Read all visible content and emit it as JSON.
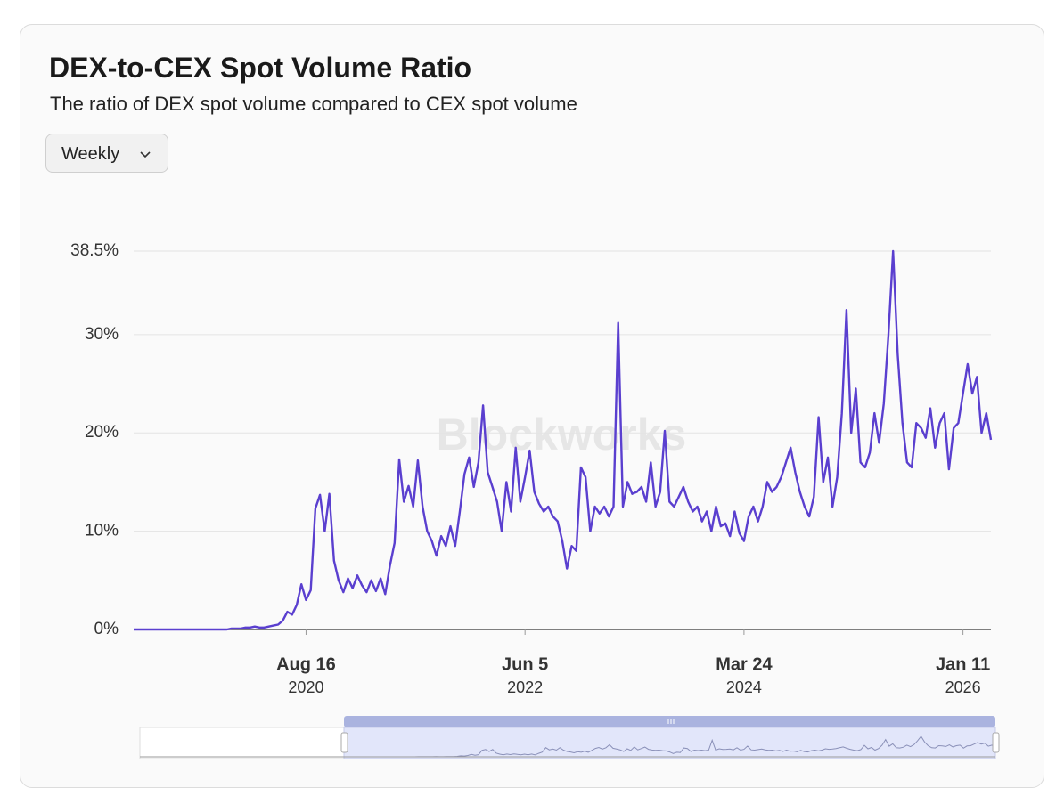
{
  "header": {
    "title": "DEX-to-CEX Spot Volume Ratio",
    "subtitle": "The ratio of DEX spot volume compared to CEX spot volume",
    "dropdown": "Weekly"
  },
  "chart_data": {
    "type": "line",
    "watermark": "Blockworks",
    "x": [
      "2019-03-17",
      "2019-03-31",
      "2019-04-14",
      "2019-04-28",
      "2019-05-12",
      "2019-05-26",
      "2019-06-09",
      "2019-06-23",
      "2019-07-07",
      "2019-07-21",
      "2019-08-04",
      "2019-08-18",
      "2019-09-01",
      "2019-09-15",
      "2019-09-29",
      "2019-10-13",
      "2019-10-27",
      "2019-11-10",
      "2019-11-24",
      "2019-12-08",
      "2019-12-22",
      "2020-01-05",
      "2020-01-19",
      "2020-02-02",
      "2020-02-16",
      "2020-03-01",
      "2020-03-15",
      "2020-03-29",
      "2020-04-12",
      "2020-04-26",
      "2020-05-10",
      "2020-05-24",
      "2020-06-07",
      "2020-06-21",
      "2020-07-05",
      "2020-07-19",
      "2020-08-02",
      "2020-08-16",
      "2020-08-30",
      "2020-09-13",
      "2020-09-27",
      "2020-10-11",
      "2020-10-25",
      "2020-11-08",
      "2020-11-22",
      "2020-12-06",
      "2020-12-20",
      "2021-01-03",
      "2021-01-17",
      "2021-01-31",
      "2021-02-14",
      "2021-02-28",
      "2021-03-14",
      "2021-03-28",
      "2021-04-11",
      "2021-04-25",
      "2021-05-09",
      "2021-05-23",
      "2021-06-06",
      "2021-06-20",
      "2021-07-04",
      "2021-07-18",
      "2021-08-01",
      "2021-08-15",
      "2021-08-29",
      "2021-09-12",
      "2021-09-26",
      "2021-10-10",
      "2021-10-24",
      "2021-11-07",
      "2021-11-21",
      "2021-12-05",
      "2021-12-19",
      "2022-01-02",
      "2022-01-16",
      "2022-01-30",
      "2022-02-13",
      "2022-02-27",
      "2022-03-13",
      "2022-03-27",
      "2022-04-10",
      "2022-04-24",
      "2022-05-08",
      "2022-05-22",
      "2022-06-05",
      "2022-06-19",
      "2022-07-03",
      "2022-07-17",
      "2022-07-31",
      "2022-08-14",
      "2022-08-28",
      "2022-09-11",
      "2022-09-25",
      "2022-10-09",
      "2022-10-23",
      "2022-11-06",
      "2022-11-20",
      "2022-12-04",
      "2022-12-18",
      "2023-01-01",
      "2023-01-15",
      "2023-01-29",
      "2023-02-12",
      "2023-02-26",
      "2023-03-12",
      "2023-03-26",
      "2023-04-09",
      "2023-04-23",
      "2023-05-07",
      "2023-05-21",
      "2023-06-04",
      "2023-06-18",
      "2023-07-02",
      "2023-07-16",
      "2023-07-30",
      "2023-08-13",
      "2023-08-27",
      "2023-09-10",
      "2023-09-24",
      "2023-10-08",
      "2023-10-22",
      "2023-11-05",
      "2023-11-19",
      "2023-12-03",
      "2023-12-17",
      "2023-12-31",
      "2024-01-14",
      "2024-01-28",
      "2024-02-11",
      "2024-02-25",
      "2024-03-10",
      "2024-03-24",
      "2024-04-07",
      "2024-04-21",
      "2024-05-05",
      "2024-05-19",
      "2024-06-02",
      "2024-06-16",
      "2024-06-30",
      "2024-07-14",
      "2024-07-28",
      "2024-08-11",
      "2024-08-25",
      "2024-09-08",
      "2024-09-22",
      "2024-10-06",
      "2024-10-20",
      "2024-11-03",
      "2024-11-17",
      "2024-12-01",
      "2024-12-15",
      "2024-12-29",
      "2025-01-12",
      "2025-01-26",
      "2025-02-09",
      "2025-02-23",
      "2025-03-09",
      "2025-03-23",
      "2025-04-06",
      "2025-04-20",
      "2025-05-04",
      "2025-05-18",
      "2025-06-01",
      "2025-06-15",
      "2025-06-29",
      "2025-07-13",
      "2025-07-27",
      "2025-08-10",
      "2025-08-24",
      "2025-09-07",
      "2025-09-21",
      "2025-10-05",
      "2025-10-19",
      "2025-11-02",
      "2025-11-16",
      "2025-11-30",
      "2025-12-14",
      "2025-12-28",
      "2026-01-11",
      "2026-01-25",
      "2026-02-08",
      "2026-02-22",
      "2026-03-08",
      "2026-03-22",
      "2026-04-05"
    ],
    "series": [
      {
        "name": "DEX-to-CEX Spot Volume Ratio",
        "color": "#5a3fcf",
        "values": [
          0,
          0,
          0,
          0,
          0,
          0,
          0,
          0,
          0,
          0,
          0,
          0,
          0,
          0,
          0,
          0,
          0,
          0,
          0,
          0,
          0,
          0.1,
          0.1,
          0.1,
          0.2,
          0.2,
          0.3,
          0.2,
          0.2,
          0.3,
          0.4,
          0.5,
          0.9,
          1.8,
          1.5,
          2.5,
          4.6,
          3.0,
          4.0,
          12.3,
          13.7,
          10,
          13.8,
          7.0,
          5.0,
          3.8,
          5.2,
          4.2,
          5.5,
          4.5,
          3.8,
          5.0,
          3.9,
          5.2,
          3.6,
          6.5,
          8.8,
          17.3,
          13.0,
          14.6,
          12.5,
          17.2,
          12.5,
          10.0,
          9.0,
          7.5,
          9.5,
          8.5,
          10.5,
          8.5,
          12.0,
          15.8,
          17.5,
          14.5,
          17.0,
          22.8,
          16.0,
          14.5,
          13.0,
          10.0,
          15.0,
          12.0,
          18.5,
          13.0,
          15.5,
          18.2,
          14.0,
          12.8,
          12.0,
          12.5,
          11.5,
          11.0,
          9.0,
          6.2,
          8.5,
          8.0,
          16.5,
          15.5,
          10.0,
          12.5,
          11.8,
          12.5,
          11.5,
          12.5,
          31.2,
          12.5,
          15.0,
          13.8,
          14.0,
          14.5,
          13.0,
          17.0,
          12.5,
          14.0,
          20.2,
          13.0,
          12.5,
          13.5,
          14.5,
          13.0,
          12.0,
          12.5,
          11.0,
          12.0,
          10.0,
          12.5,
          10.5,
          10.8,
          9.5,
          12.0,
          9.8,
          9.0,
          11.5,
          12.5,
          11.0,
          12.5,
          15.0,
          14.0,
          14.5,
          15.5,
          17.0,
          18.5,
          16.0,
          14.0,
          12.5,
          11.5,
          13.5,
          21.6,
          15.0,
          17.5,
          12.5,
          15.5,
          22.0,
          32.5,
          20.0,
          24.5,
          17.0,
          16.5,
          18.0,
          22.0,
          19.0,
          23.0,
          30.0,
          38.5,
          28.0,
          21.0,
          17.0,
          16.5,
          21.0,
          20.5,
          19.5,
          22.5,
          18.5,
          21.0,
          22.0,
          16.3,
          20.5,
          21.0,
          24.0,
          27.0,
          24.0,
          25.7,
          20.0,
          22.0,
          19.3
        ]
      }
    ],
    "xlim": [
      "2019-03-17",
      "2026-04-05"
    ],
    "xticks": [
      {
        "value": "2020-08-16",
        "label": "Aug 16",
        "year": "2020"
      },
      {
        "value": "2022-06-05",
        "label": "Jun 5",
        "year": "2022"
      },
      {
        "value": "2024-03-24",
        "label": "Mar 24",
        "year": "2024"
      },
      {
        "value": "2026-01-11",
        "label": "Jan 11",
        "year": "2026"
      }
    ],
    "ylim": [
      0,
      38.5
    ],
    "yticks": [
      {
        "value": 0,
        "label": "0%"
      },
      {
        "value": 10,
        "label": "10%"
      },
      {
        "value": 20,
        "label": "20%"
      },
      {
        "value": 30,
        "label": "30%"
      },
      {
        "value": 38.5,
        "label": "38.5%"
      }
    ],
    "grid": true
  }
}
